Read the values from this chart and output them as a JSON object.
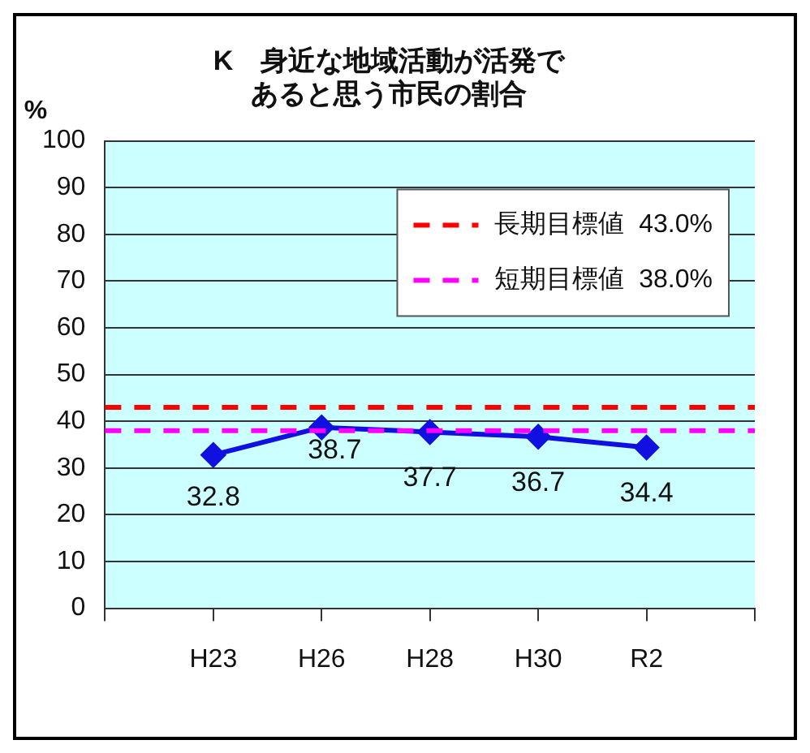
{
  "chart_data": {
    "type": "line",
    "title": "K　身近な地域活動が活発であると思う市民の割合",
    "ylabel": "%",
    "categories": [
      null,
      "H23",
      "H26",
      "H28",
      "H30",
      "R2",
      null
    ],
    "series": [
      {
        "color": "#1010e0",
        "values": [
          null,
          32.8,
          38.7,
          37.7,
          36.7,
          34.4,
          null
        ]
      }
    ],
    "ylim": [
      0,
      100
    ],
    "yticks": [
      0,
      10,
      20,
      30,
      40,
      50,
      60,
      70,
      80,
      90,
      100
    ],
    "ref_lines": [
      {
        "axis": "y",
        "value": 43.0,
        "label": "長期目標値  43.0%",
        "color": "#ff0000",
        "line_style": "dashed"
      },
      {
        "axis": "y",
        "value": 38.0,
        "label": "短期目標値  38.0%",
        "color": "#ff00ff",
        "line_style": "dashed"
      }
    ],
    "grid": "y",
    "legend": "top right",
    "marker": "diamond",
    "line_style": "solid",
    "data_labels": true
  }
}
